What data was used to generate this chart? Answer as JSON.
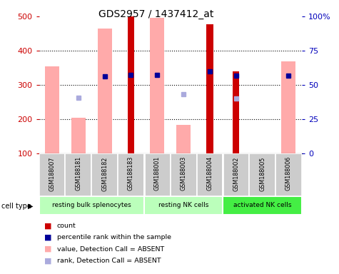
{
  "title": "GDS2957 / 1437412_at",
  "samples": [
    "GSM188007",
    "GSM188181",
    "GSM188182",
    "GSM188183",
    "GSM188001",
    "GSM188003",
    "GSM188004",
    "GSM188002",
    "GSM188005",
    "GSM188006"
  ],
  "cell_types": [
    {
      "label": "resting bulk splenocytes",
      "start": 0,
      "end": 4,
      "color": "#bbffbb"
    },
    {
      "label": "resting NK cells",
      "start": 4,
      "end": 7,
      "color": "#bbffbb"
    },
    {
      "label": "activated NK cells",
      "start": 7,
      "end": 10,
      "color": "#44ee44"
    }
  ],
  "value_absent": [
    355,
    205,
    465,
    null,
    495,
    183,
    null,
    null,
    null,
    368
  ],
  "rank_absent": [
    null,
    262,
    null,
    null,
    null,
    272,
    null,
    260,
    null,
    null
  ],
  "count_present": [
    null,
    null,
    null,
    500,
    null,
    null,
    477,
    340,
    null,
    null
  ],
  "rank_present": [
    null,
    null,
    325,
    330,
    330,
    null,
    340,
    328,
    null,
    328
  ],
  "count_absent_bar": [
    null,
    null,
    null,
    null,
    null,
    null,
    null,
    null,
    100,
    null
  ],
  "ylim": [
    100,
    500
  ],
  "yticks_left": [
    100,
    200,
    300,
    400,
    500
  ],
  "ylim_right": [
    0,
    100
  ],
  "yticks_right": [
    0,
    25,
    50,
    75,
    100
  ],
  "colors": {
    "count_present": "#cc0000",
    "count_absent": "#ffaaaa",
    "value_absent": "#ffaaaa",
    "rank_present": "#000099",
    "rank_absent": "#aaaadd",
    "cell_type_bg1": "#bbffbb",
    "cell_type_bg2": "#44ee44",
    "sample_bg": "#cccccc",
    "axis_left": "#cc0000",
    "axis_right": "#0000bb",
    "grid": "black"
  },
  "group_dividers": [
    3.5,
    6.5
  ],
  "pink_bar_width": 0.55,
  "red_bar_width": 0.25
}
